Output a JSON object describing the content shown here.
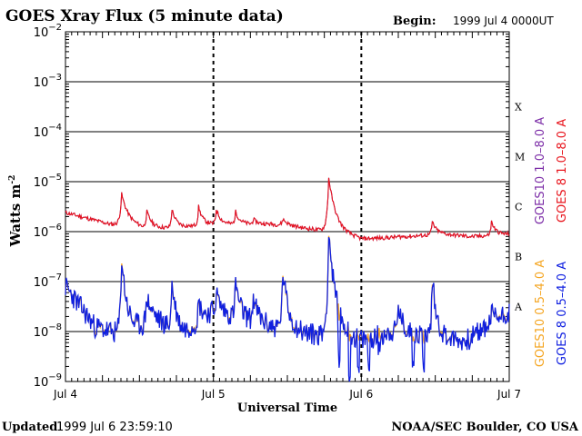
{
  "chart_data": {
    "type": "line",
    "title": "GOES Xray Flux (5 minute data)",
    "begin_label": "Begin:",
    "begin_value": "1999 Jul 4 0000UT",
    "xlabel": "Universal Time",
    "ylabel": "Watts m",
    "ylabel_exponent": "-2",
    "x_tick_labels": [
      "Jul 4",
      "Jul 5",
      "Jul 6",
      "Jul 7"
    ],
    "x_range_days": [
      0,
      3
    ],
    "y_scale": "log",
    "ylim": [
      1e-09,
      0.01
    ],
    "y_tick_exponents": [
      -9,
      -8,
      -7,
      -6,
      -5,
      -4,
      -3,
      -2
    ],
    "class_labels": [
      {
        "label": "A",
        "exponent": -8
      },
      {
        "label": "B",
        "exponent": -7
      },
      {
        "label": "C",
        "exponent": -6
      },
      {
        "label": "M",
        "exponent": -5
      },
      {
        "label": "X",
        "exponent": -4
      }
    ],
    "grid": true,
    "legend_placement": "right-vertical",
    "series": [
      {
        "name": "GOES10 1.0–8.0 A",
        "color": "#7d2fa8",
        "baseline": [
          [
            0.0,
            -5.62
          ],
          [
            0.3,
            -5.85
          ],
          [
            0.6,
            -5.95
          ],
          [
            1.0,
            -5.85
          ],
          [
            1.4,
            -5.85
          ],
          [
            1.8,
            -6.0
          ],
          [
            2.0,
            -6.15
          ],
          [
            2.3,
            -6.1
          ],
          [
            2.55,
            -6.05
          ],
          [
            2.75,
            -6.1
          ],
          [
            3.0,
            -6.05
          ]
        ],
        "flares": [
          [
            0.38,
            -5.25,
            0.05
          ],
          [
            0.55,
            -5.6,
            0.04
          ],
          [
            0.72,
            -5.55,
            0.03
          ],
          [
            0.9,
            -5.5,
            0.03
          ],
          [
            1.02,
            -5.55,
            0.03
          ],
          [
            1.15,
            -5.6,
            0.03
          ],
          [
            1.27,
            -5.75,
            0.03
          ],
          [
            1.47,
            -5.75,
            0.04
          ],
          [
            1.78,
            -4.93,
            0.05
          ],
          [
            1.82,
            -5.6,
            0.04
          ],
          [
            2.25,
            -6.1,
            0.03
          ],
          [
            2.48,
            -5.8,
            0.03
          ],
          [
            2.88,
            -5.8,
            0.03
          ]
        ],
        "hidden_behind": "GOES 8 1.0–8.0 A"
      },
      {
        "name": "GOES 8 1.0–8.0 A",
        "color": "#e8141c",
        "baseline": [
          [
            0.0,
            -5.62
          ],
          [
            0.3,
            -5.85
          ],
          [
            0.6,
            -5.95
          ],
          [
            1.0,
            -5.85
          ],
          [
            1.4,
            -5.85
          ],
          [
            1.8,
            -6.0
          ],
          [
            2.0,
            -6.15
          ],
          [
            2.3,
            -6.1
          ],
          [
            2.55,
            -6.05
          ],
          [
            2.75,
            -6.1
          ],
          [
            3.0,
            -6.05
          ]
        ],
        "flares": [
          [
            0.38,
            -5.25,
            0.05
          ],
          [
            0.55,
            -5.6,
            0.04
          ],
          [
            0.72,
            -5.55,
            0.03
          ],
          [
            0.9,
            -5.5,
            0.03
          ],
          [
            1.02,
            -5.55,
            0.03
          ],
          [
            1.15,
            -5.6,
            0.03
          ],
          [
            1.27,
            -5.75,
            0.03
          ],
          [
            1.47,
            -5.75,
            0.04
          ],
          [
            1.78,
            -4.93,
            0.05
          ],
          [
            1.82,
            -5.6,
            0.04
          ],
          [
            2.25,
            -6.1,
            0.03
          ],
          [
            2.48,
            -5.8,
            0.03
          ],
          [
            2.88,
            -5.8,
            0.03
          ]
        ]
      },
      {
        "name": "GOES10 0.5–4.0 A",
        "color": "#f5a623",
        "baseline": [
          [
            0.0,
            -7.1
          ],
          [
            0.2,
            -7.9
          ],
          [
            0.4,
            -8.1
          ],
          [
            0.6,
            -7.8
          ],
          [
            0.8,
            -8.0
          ],
          [
            1.0,
            -7.6
          ],
          [
            1.3,
            -7.8
          ],
          [
            1.5,
            -8.0
          ],
          [
            1.8,
            -8.1
          ],
          [
            2.0,
            -8.2
          ],
          [
            2.2,
            -8.0
          ],
          [
            2.5,
            -8.1
          ],
          [
            2.7,
            -8.2
          ],
          [
            3.0,
            -7.6
          ]
        ],
        "flares": [
          [
            0.38,
            -6.5,
            0.04
          ],
          [
            0.55,
            -7.3,
            0.04
          ],
          [
            0.72,
            -7.0,
            0.03
          ],
          [
            0.9,
            -7.4,
            0.03
          ],
          [
            1.02,
            -7.2,
            0.03
          ],
          [
            1.15,
            -7.0,
            0.03
          ],
          [
            1.27,
            -7.3,
            0.03
          ],
          [
            1.47,
            -6.8,
            0.04
          ],
          [
            1.78,
            -6.0,
            0.05
          ],
          [
            1.82,
            -7.5,
            0.04
          ],
          [
            2.25,
            -7.5,
            0.03
          ],
          [
            2.48,
            -6.9,
            0.03
          ],
          [
            2.88,
            -7.6,
            0.03
          ]
        ]
      },
      {
        "name": "GOES 8 0.5–4.0 A",
        "color": "#1020e0",
        "baseline": [
          [
            0.0,
            -7.1
          ],
          [
            0.2,
            -7.9
          ],
          [
            0.4,
            -8.1
          ],
          [
            0.6,
            -7.8
          ],
          [
            0.8,
            -8.0
          ],
          [
            1.0,
            -7.6
          ],
          [
            1.3,
            -7.8
          ],
          [
            1.5,
            -8.0
          ],
          [
            1.8,
            -8.1
          ],
          [
            2.0,
            -8.2
          ],
          [
            2.2,
            -8.0
          ],
          [
            2.5,
            -8.1
          ],
          [
            2.7,
            -8.2
          ],
          [
            3.0,
            -7.6
          ]
        ],
        "flares": [
          [
            0.38,
            -6.5,
            0.04
          ],
          [
            0.55,
            -7.3,
            0.04
          ],
          [
            0.72,
            -7.0,
            0.03
          ],
          [
            0.9,
            -7.4,
            0.03
          ],
          [
            1.02,
            -7.2,
            0.03
          ],
          [
            1.15,
            -7.0,
            0.03
          ],
          [
            1.27,
            -7.3,
            0.03
          ],
          [
            1.47,
            -6.8,
            0.04
          ],
          [
            1.78,
            -6.0,
            0.05
          ],
          [
            1.82,
            -7.5,
            0.04
          ],
          [
            2.25,
            -7.5,
            0.03
          ],
          [
            2.48,
            -6.9,
            0.03
          ],
          [
            2.88,
            -7.6,
            0.03
          ]
        ],
        "dropouts": [
          [
            1.85,
            -8.5
          ],
          [
            1.92,
            -8.9
          ],
          [
            1.98,
            -8.8
          ],
          [
            2.05,
            -8.7
          ],
          [
            2.12,
            -8.4
          ],
          [
            2.35,
            -8.5
          ],
          [
            2.42,
            -8.6
          ]
        ]
      }
    ]
  },
  "footer": {
    "updated_label": "Updated",
    "updated_value": "1999 Jul  6 23:59:10",
    "credit": "NOAA/SEC Boulder, CO USA"
  }
}
